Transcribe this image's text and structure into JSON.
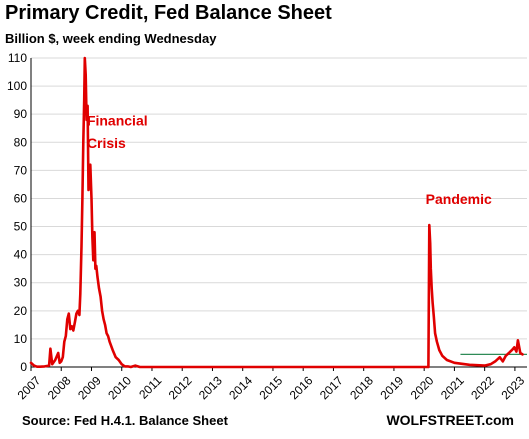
{
  "chart_data": {
    "type": "line",
    "title": "Primary Credit, Fed Balance Sheet",
    "subtitle": "Billion $, week ending Wednesday",
    "xlabel": "",
    "ylabel": "",
    "ylim": [
      0,
      110
    ],
    "yticks": [
      0,
      10,
      20,
      30,
      40,
      50,
      60,
      70,
      80,
      90,
      100,
      110
    ],
    "xticks": [
      "2007",
      "2008",
      "2009",
      "2010",
      "2011",
      "2012",
      "2013",
      "2014",
      "2015",
      "2016",
      "2017",
      "2018",
      "2019",
      "2020",
      "2021",
      "2022",
      "2023"
    ],
    "xlim": [
      2007.0,
      2023.4
    ],
    "grid": "horizontal",
    "colors": {
      "series": "#e00000",
      "reference_line": "#2e8b57",
      "grid": "#d9d9d9"
    },
    "series": [
      {
        "x": [
          2007.0,
          2007.1,
          2007.2,
          2007.3,
          2007.45,
          2007.6,
          2007.64,
          2007.7,
          2007.8,
          2007.9,
          2007.95,
          2008.0,
          2008.05,
          2008.1,
          2008.15,
          2008.2,
          2008.25,
          2008.3,
          2008.35,
          2008.4,
          2008.45,
          2008.5,
          2008.55,
          2008.6,
          2008.63,
          2008.67,
          2008.7,
          2008.73,
          2008.76,
          2008.78,
          2008.81,
          2008.84,
          2008.87,
          2008.9,
          2008.93,
          2008.96,
          2009.0,
          2009.03,
          2009.06,
          2009.1,
          2009.13,
          2009.16,
          2009.2,
          2009.25,
          2009.3,
          2009.35,
          2009.4,
          2009.45,
          2009.5,
          2009.55,
          2009.6,
          2009.7,
          2009.8,
          2009.9,
          2010.0,
          2010.1,
          2010.2,
          2010.3,
          2010.45,
          2010.6,
          2011.0,
          2015.0,
          2020.14,
          2020.17,
          2020.2,
          2020.22,
          2020.25,
          2020.28,
          2020.32,
          2020.36,
          2020.42,
          2020.5,
          2020.6,
          2020.75,
          2021.0,
          2021.5,
          2022.0,
          2022.2,
          2022.35,
          2022.5,
          2022.6,
          2022.7,
          2022.8,
          2022.9,
          2022.98,
          2023.05,
          2023.1,
          2023.18,
          2023.25
        ],
        "y": [
          1.5,
          0.5,
          0.1,
          0.1,
          0.2,
          0.5,
          6.5,
          1.0,
          2.5,
          5.0,
          1.5,
          2.0,
          3.5,
          9.0,
          11.0,
          17.0,
          19.0,
          13.5,
          14.5,
          13.0,
          16.0,
          19.0,
          20.0,
          18.5,
          26.0,
          43.0,
          60.0,
          80.0,
          95.0,
          110.0,
          104.0,
          88.0,
          93.0,
          63.0,
          66.0,
          72.0,
          60.0,
          46.0,
          38.0,
          48.0,
          35.0,
          36.0,
          32.0,
          28.0,
          25.0,
          20.0,
          17.0,
          15.0,
          12.0,
          11.0,
          9.0,
          6.0,
          3.5,
          2.5,
          1.0,
          0.2,
          0.2,
          0.0,
          0.5,
          0.0,
          0.0,
          0.0,
          0.0,
          50.5,
          44.0,
          35.0,
          28.0,
          23.0,
          18.0,
          12.0,
          9.0,
          6.0,
          4.0,
          2.5,
          1.5,
          0.8,
          0.5,
          1.0,
          2.0,
          3.5,
          2.0,
          4.0,
          5.0,
          6.0,
          7.0,
          5.5,
          9.5,
          5.0,
          4.5
        ]
      }
    ],
    "reference_line": {
      "value": 4.5,
      "x_from": 2021.2,
      "x_to": 2023.4
    },
    "annotations": [
      {
        "text": "Financial",
        "x": 2008.85,
        "y": 86
      },
      {
        "text": "Crisis",
        "x": 2008.85,
        "y": 78
      },
      {
        "text": "Pandemic",
        "x": 2020.05,
        "y": 58
      }
    ]
  },
  "footer": {
    "source": "Source: Fed H.4.1. Balance Sheet",
    "brand": "WOLFSTREET.com"
  }
}
